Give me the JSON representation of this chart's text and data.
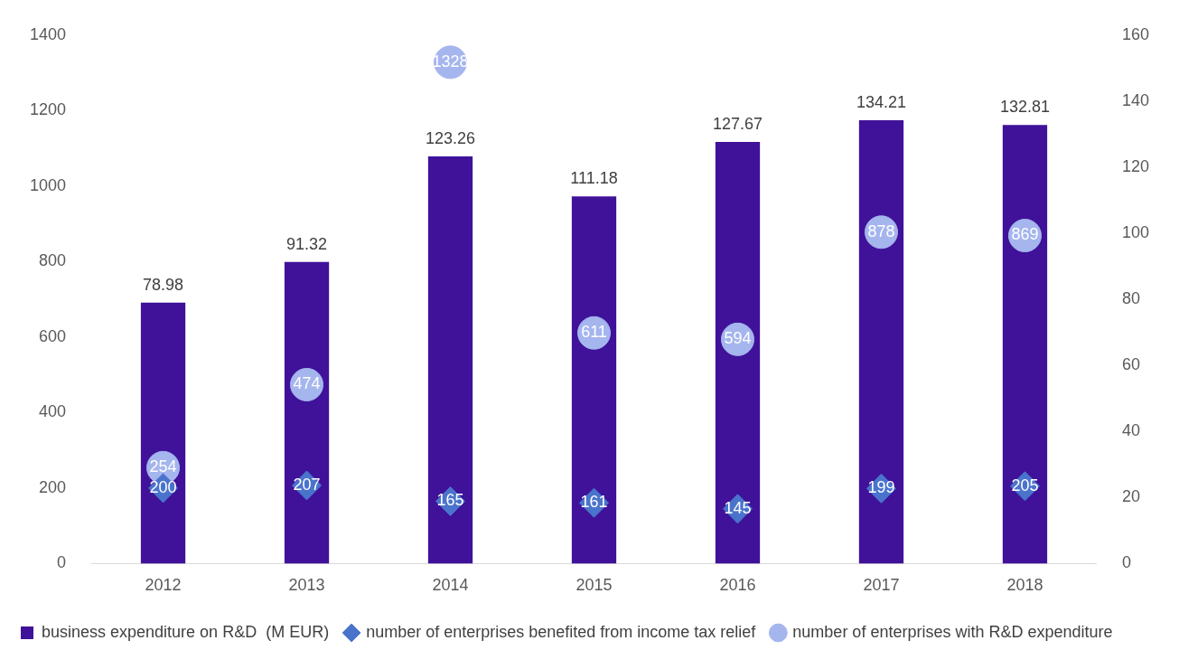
{
  "chart_data": {
    "type": "bar",
    "categories": [
      "2012",
      "2013",
      "2014",
      "2015",
      "2016",
      "2017",
      "2018"
    ],
    "series": [
      {
        "name": "business expenditure on R&D  (M EUR)",
        "axis": "y2",
        "color": "#3f1299",
        "values": [
          78.98,
          91.32,
          123.26,
          111.18,
          127.67,
          134.21,
          132.81
        ]
      },
      {
        "name": "number of enterprises benefited from income tax relief",
        "type": "scatter",
        "marker": "diamond",
        "color": "#4a74cc",
        "values": [
          200,
          207,
          165,
          161,
          145,
          199,
          205
        ]
      },
      {
        "name": "number of enterprises with R&D expenditure",
        "type": "scatter",
        "marker": "circle",
        "color": "#a5b5ee",
        "values": [
          254,
          474,
          1328,
          611,
          594,
          878,
          869
        ]
      }
    ],
    "ylim": [
      0,
      1400
    ],
    "yticks": [
      0,
      200,
      400,
      600,
      800,
      1000,
      1200,
      1400
    ],
    "y2lim": [
      0,
      160
    ],
    "y2ticks": [
      0,
      20,
      40,
      60,
      80,
      100,
      120,
      140,
      160
    ],
    "data_labels": true,
    "grid": false,
    "legend": "bottom"
  }
}
